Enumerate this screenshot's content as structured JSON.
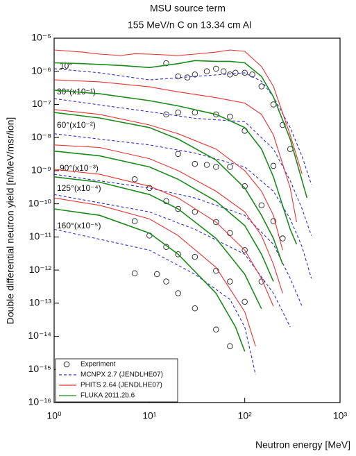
{
  "chart_data": {
    "type": "line",
    "title": "MSU source term",
    "subtitle": "155 MeV/n C on 13.34 cm Al",
    "xlabel": "Neutron energy [MeV]",
    "ylabel": "Double differential neutron yield [n/MeV/msr/ion]",
    "xscale": "log",
    "yscale": "log",
    "xlim": [
      1,
      1000
    ],
    "ylim": [
      1e-16,
      1e-05
    ],
    "xticks": [
      {
        "value": 1,
        "label": "10⁰"
      },
      {
        "value": 10,
        "label": "10¹"
      },
      {
        "value": 100,
        "label": "10²"
      },
      {
        "value": 1000,
        "label": "10³"
      }
    ],
    "yticks": [
      {
        "value": 1e-16,
        "label": "10⁻¹⁶"
      },
      {
        "value": 1e-15,
        "label": "10⁻¹⁵"
      },
      {
        "value": 1e-14,
        "label": "10⁻¹⁴"
      },
      {
        "value": 1e-13,
        "label": "10⁻¹³"
      },
      {
        "value": 1e-12,
        "label": "10⁻¹²"
      },
      {
        "value": 1e-11,
        "label": "10⁻¹¹"
      },
      {
        "value": 1e-10,
        "label": "10⁻¹⁰"
      },
      {
        "value": 1e-09,
        "label": "10⁻⁹"
      },
      {
        "value": 1e-08,
        "label": "10⁻⁸"
      },
      {
        "value": 1e-07,
        "label": "10⁻⁷"
      },
      {
        "value": 1e-06,
        "label": "10⁻⁶"
      },
      {
        "value": 1e-05,
        "label": "10⁻⁵"
      }
    ],
    "legend": "lower left",
    "angle_labels": [
      "10°",
      "30°(x10⁻¹)",
      "60°(x10⁻²)",
      "90°(x10⁻³)",
      "125°(x10⁻⁴)",
      "160°(x10⁻⁵)"
    ],
    "series": [
      {
        "name": "Experiment",
        "color": "#222222",
        "marker": "circle",
        "curves": [
          {
            "x": [
              15,
              20,
              25,
              30,
              40,
              50,
              60,
              70,
              80,
              100,
              120,
              150,
              200,
              250,
              300
            ],
            "values": [
              1.75e-06,
              7e-07,
              6.5e-07,
              8e-07,
              1e-06,
              1.2e-06,
              1e-06,
              8e-07,
              9e-07,
              9e-07,
              8e-07,
              3.5e-07,
              1e-07,
              2.4e-08,
              4.5e-09
            ]
          },
          {
            "x": [
              15,
              20,
              30,
              50,
              70,
              100,
              200
            ],
            "values": [
              5e-08,
              5.7e-08,
              5.7e-08,
              5e-08,
              4.3e-08,
              1.6e-08,
              1.4e-09
            ]
          },
          {
            "x": [
              20,
              30,
              40,
              50,
              70,
              100,
              150,
              200,
              250
            ],
            "values": [
              3.2e-09,
              1.6e-09,
              1.5e-09,
              1.3e-09,
              1.3e-09,
              3.4e-10,
              9e-11,
              3e-11,
              9e-12
            ]
          },
          {
            "x": [
              7,
              10,
              15,
              20,
              30,
              50,
              70,
              100,
              150
            ],
            "values": [
              5.5e-10,
              3e-10,
              1.2e-10,
              7e-11,
              5.7e-11,
              2.8e-11,
              1.3e-11,
              4e-12,
              4.5e-13
            ]
          },
          {
            "x": [
              7,
              10,
              15,
              20,
              30,
              50,
              70,
              100
            ],
            "values": [
              3e-11,
              1.1e-11,
              5e-12,
              3e-12,
              2.5e-12,
              9.5e-13,
              4.5e-13,
              1.1e-13
            ]
          },
          {
            "x": [
              7,
              12,
              15,
              20,
              30,
              50,
              70
            ],
            "values": [
              8e-13,
              7.5e-13,
              4.5e-13,
              2e-13,
              7e-14,
              1.6e-14,
              5e-15
            ]
          }
        ]
      },
      {
        "name": "MCNPX 2.7 (JENDLHE07)",
        "color": "#2b2bd6",
        "dash": true,
        "curves": [
          {
            "x": [
              1,
              3,
              10,
              30,
              100,
              150,
              200,
              300,
              400,
              500
            ],
            "values": [
              1.2e-06,
              9e-07,
              5.5e-07,
              7e-07,
              9e-07,
              5e-07,
              1.7e-07,
              2e-08,
              2.7e-09,
              3.8e-10
            ]
          },
          {
            "x": [
              1,
              10,
              30,
              100,
              200,
              300,
              400,
              500
            ],
            "values": [
              1.5e-07,
              6e-08,
              3.8e-08,
              3e-08,
              4.5e-09,
              5e-10,
              7e-11,
              1.1e-11
            ]
          },
          {
            "x": [
              1,
              10,
              30,
              100,
              200,
              300,
              400,
              500
            ],
            "values": [
              1.3e-08,
              6e-09,
              3.4e-09,
              1.3e-09,
              2.4e-10,
              3.5e-11,
              5e-12,
              5.6e-13
            ]
          },
          {
            "x": [
              1,
              10,
              30,
              100,
              200,
              300,
              400
            ],
            "values": [
              7.8e-10,
              3e-10,
              1.5e-10,
              4.5e-11,
              6e-12,
              5.6e-13,
              8e-14
            ]
          },
          {
            "x": [
              1,
              10,
              30,
              100,
              200,
              300
            ],
            "values": [
              1.9e-10,
              5.7e-11,
              1.7e-11,
              3e-12,
              2e-13,
              1.9e-14
            ]
          },
          {
            "x": [
              1,
              10,
              30,
              70,
              100,
              130
            ],
            "values": [
              1.7e-11,
              4e-12,
              7.5e-13,
              1.3e-13,
              1.9e-14,
              7e-16
            ]
          }
        ]
      },
      {
        "name": "PHITS 2.64 (JENDLHE07)",
        "color": "#e8312f",
        "curves": [
          {
            "x": [
              1,
              2,
              3,
              5,
              7,
              10,
              20,
              30,
              50,
              70,
              100,
              150,
              200,
              300,
              400
            ],
            "values": [
              4.4e-06,
              3.8e-06,
              3.3e-06,
              3e-06,
              3.4e-06,
              3.3e-06,
              3e-06,
              3.3e-06,
              3.8e-06,
              4.4e-06,
              4e-06,
              1.4e-06,
              3.5e-07,
              1.2e-08,
              8e-10
            ]
          },
          {
            "x": [
              1,
              3,
              10,
              20,
              50,
              100,
              150,
              200,
              300,
              350
            ],
            "values": [
              5.5e-07,
              4.8e-07,
              3.4e-07,
              2.4e-07,
              1.6e-07,
              1.1e-07,
              5e-08,
              1.2e-08,
              3e-10,
              2.8e-11
            ]
          },
          {
            "x": [
              1,
              3,
              10,
              20,
              50,
              100,
              150,
              200,
              250
            ],
            "values": [
              7e-08,
              5e-08,
              2.4e-08,
              1.3e-08,
              4.5e-09,
              1e-09,
              2.4e-10,
              4.5e-11,
              4e-12
            ]
          },
          {
            "x": [
              1,
              3,
              10,
              20,
              50,
              100,
              150,
              200,
              250
            ],
            "values": [
              6e-09,
              5e-09,
              2.3e-09,
              1e-09,
              2.4e-10,
              5.7e-11,
              1.1e-11,
              1.5e-12,
              2e-13
            ]
          },
          {
            "x": [
              1,
              3,
              10,
              20,
              50,
              100,
              150,
              200
            ],
            "values": [
              1.1e-09,
              7.8e-10,
              3.4e-10,
              1.5e-10,
              2.8e-11,
              4e-12,
              5.6e-13,
              8e-14
            ]
          },
          {
            "x": [
              1,
              3,
              10,
              20,
              50,
              100,
              130
            ],
            "values": [
              1.5e-10,
              9e-11,
              3.5e-11,
              1.1e-11,
              1.2e-12,
              5.5e-14,
              5e-15
            ]
          }
        ]
      },
      {
        "name": "FLUKA 2011.2b.6",
        "color": "#1a8a1a",
        "curves": [
          {
            "x": [
              1,
              2,
              5,
              10,
              20,
              30,
              50,
              70,
              100,
              150,
              200,
              300,
              400,
              450
            ],
            "values": [
              1.8e-06,
              1.7e-06,
              1.5e-06,
              1.3e-06,
              1.7e-06,
              2.1e-06,
              2e-06,
              2e-06,
              1.8e-06,
              7e-07,
              1.7e-07,
              9e-09,
              5e-10,
              1.5e-10
            ]
          },
          {
            "x": [
              1,
              3,
              10,
              20,
              50,
              100,
              150,
              200,
              300,
              350
            ],
            "values": [
              2.7e-07,
              2.1e-07,
              1.3e-07,
              9e-08,
              5e-08,
              2e-08,
              4.5e-09,
              6.5e-10,
              1.7e-11,
              6e-12
            ]
          },
          {
            "x": [
              1,
              3,
              10,
              20,
              50,
              100,
              150,
              200,
              250
            ],
            "values": [
              5.7e-08,
              3.9e-08,
              2e-08,
              9e-09,
              2.1e-09,
              3e-10,
              4.5e-11,
              9e-12,
              1.5e-12
            ]
          },
          {
            "x": [
              1,
              3,
              10,
              20,
              50,
              100,
              150,
              200
            ],
            "values": [
              3.9e-09,
              2.8e-09,
              1.3e-09,
              5.5e-10,
              1.2e-10,
              2.2e-11,
              3e-12,
              4.5e-13
            ]
          },
          {
            "x": [
              1,
              3,
              10,
              20,
              50,
              100,
              150
            ],
            "values": [
              6.5e-10,
              4.5e-10,
              1.9e-10,
              7e-11,
              9e-12,
              7.5e-13,
              6.8e-14
            ]
          },
          {
            "x": [
              1,
              3,
              10,
              20,
              50,
              80,
              100
            ],
            "values": [
              7e-11,
              4.5e-11,
              1.3e-11,
              3e-12,
              2e-13,
              1.9e-14,
              3.5e-15
            ]
          }
        ]
      }
    ]
  }
}
